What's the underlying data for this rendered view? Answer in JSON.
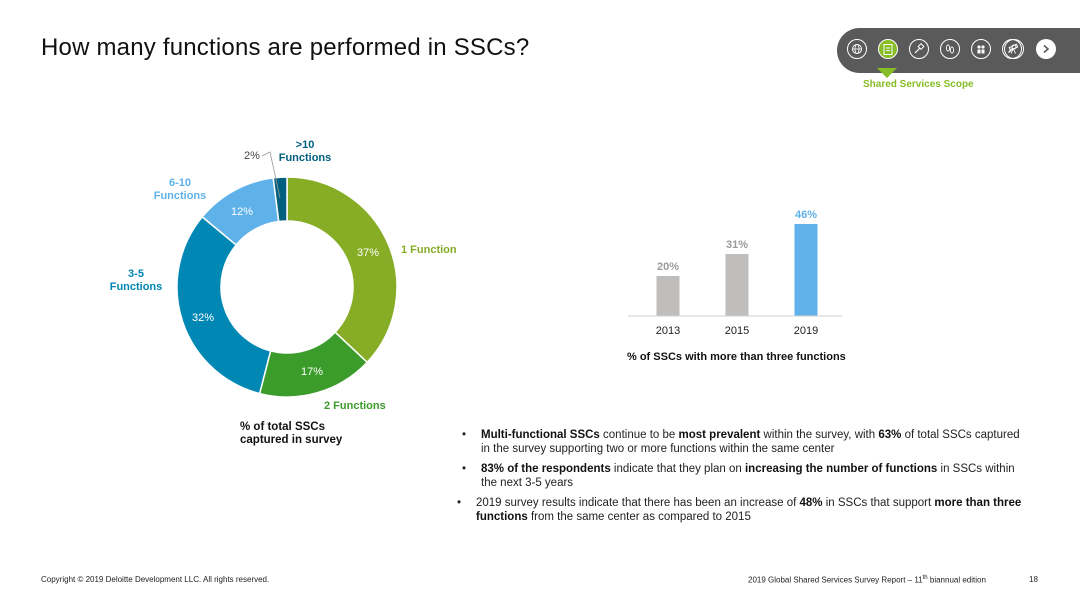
{
  "slide": {
    "title": "How many functions are performed in SSCs?",
    "page_number": "18",
    "copyright": "Copyright © 2019 Deloitte Development LLC. All rights reserved.",
    "report_prefix": "2019 Global Shared Services Survey Report – 11",
    "report_sup": "th",
    "report_suffix": " biannual edition"
  },
  "nav": {
    "active_label": "Shared Services Scope",
    "icons": [
      "globe-icon",
      "clipboard-icon",
      "gavel-icon",
      "footprints-icon",
      "people-icon",
      "wrench-icon",
      "telescope-icon"
    ],
    "next_icon": "chevron-right-icon"
  },
  "donut": {
    "caption_line1": "% of total SSCs",
    "caption_line2": "captured in survey",
    "segments": [
      {
        "name": "1 Function",
        "label_line1": "1 Function",
        "label_line2": "",
        "value": 37,
        "pct_label": "37%",
        "color": "#86ad25"
      },
      {
        "name": "2 Functions",
        "label_line1": "2 Functions",
        "label_line2": "",
        "value": 17,
        "pct_label": "17%",
        "color": "#3b9c2b"
      },
      {
        "name": "3-5 Functions",
        "label_line1": "3-5",
        "label_line2": "Functions",
        "value": 32,
        "pct_label": "32%",
        "color": "#0087b3"
      },
      {
        "name": "6-10 Functions",
        "label_line1": "6-10",
        "label_line2": "Functions",
        "value": 12,
        "pct_label": "12%",
        "color": "#5fb2e9"
      },
      {
        "name": ">10 Functions",
        "label_line1": ">10",
        "label_line2": "Functions",
        "value": 2,
        "pct_label": "2%",
        "color": "#005f7f"
      }
    ]
  },
  "chart_data": {
    "type": "bar",
    "title": "% of SSCs with more than three functions",
    "categories": [
      "2013",
      "2015",
      "2019"
    ],
    "values": [
      20,
      31,
      46
    ],
    "value_labels": [
      "20%",
      "31%",
      "46%"
    ],
    "colors": [
      "#bfbebd",
      "#bfbebd",
      "#5fb2e9"
    ],
    "label_colors": [
      "#9a9a9a",
      "#9a9a9a",
      "#5fb2e9"
    ],
    "ylim": [
      0,
      50
    ]
  },
  "bullets": {
    "b1": {
      "bold1": "Multi-functional SSCs",
      "t1": " continue to be ",
      "bold2": "most prevalent",
      "t2": " within the survey, with ",
      "bold3": "63%",
      "t3": " of total SSCs captured in the survey supporting two or more functions within the same center"
    },
    "b2": {
      "bold1": "83% of the respondents",
      "t1": " indicate that they plan on ",
      "bold2": "increasing the number of functions",
      "t2": " in SSCs within the next 3-5 years"
    },
    "b3": {
      "t1": "2019 survey results indicate that there has been an increase of ",
      "bold1": "48%",
      "t2": " in SSCs that support ",
      "bold2": "more than three functions",
      "t3": " from the same center as compared to 2015"
    }
  }
}
